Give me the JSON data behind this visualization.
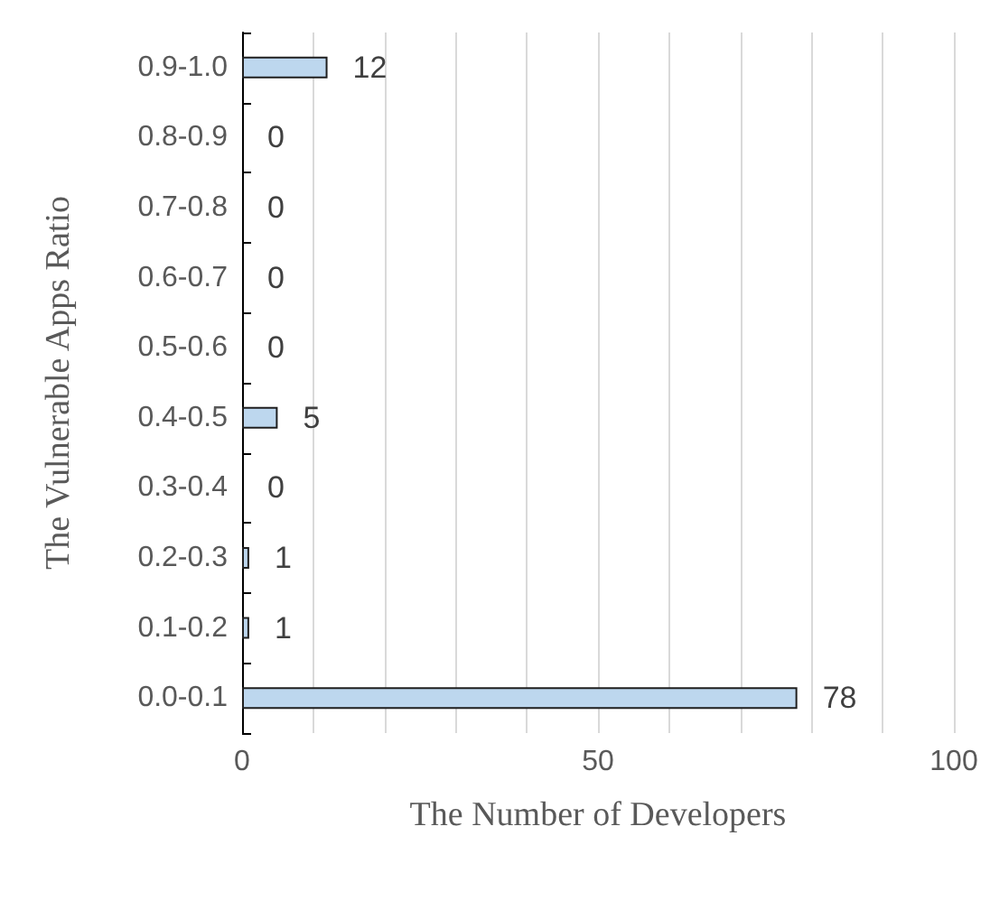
{
  "chart_data": {
    "type": "bar",
    "orientation": "horizontal",
    "xlabel": "The Number of Developers",
    "ylabel": "The Vulnerable Apps Ratio",
    "categories": [
      "0.9-1.0",
      "0.8-0.9",
      "0.7-0.8",
      "0.6-0.7",
      "0.5-0.6",
      "0.4-0.5",
      "0.3-0.4",
      "0.2-0.3",
      "0.1-0.2",
      "0.0-0.1"
    ],
    "values": [
      12,
      0,
      0,
      0,
      0,
      5,
      0,
      1,
      1,
      78
    ],
    "color": "#bdd7ee",
    "data_labels": true,
    "grid": "x",
    "xlim": [
      0,
      100
    ],
    "xticks": [
      0,
      {
        "value": 10,
        "label": null
      },
      {
        "value": 20,
        "label": null
      },
      {
        "value": 30,
        "label": null
      },
      {
        "value": 40,
        "label": null
      },
      50,
      {
        "value": 60,
        "label": null
      },
      {
        "value": 70,
        "label": null
      },
      {
        "value": 80,
        "label": null
      },
      {
        "value": 90,
        "label": null
      },
      100
    ]
  }
}
